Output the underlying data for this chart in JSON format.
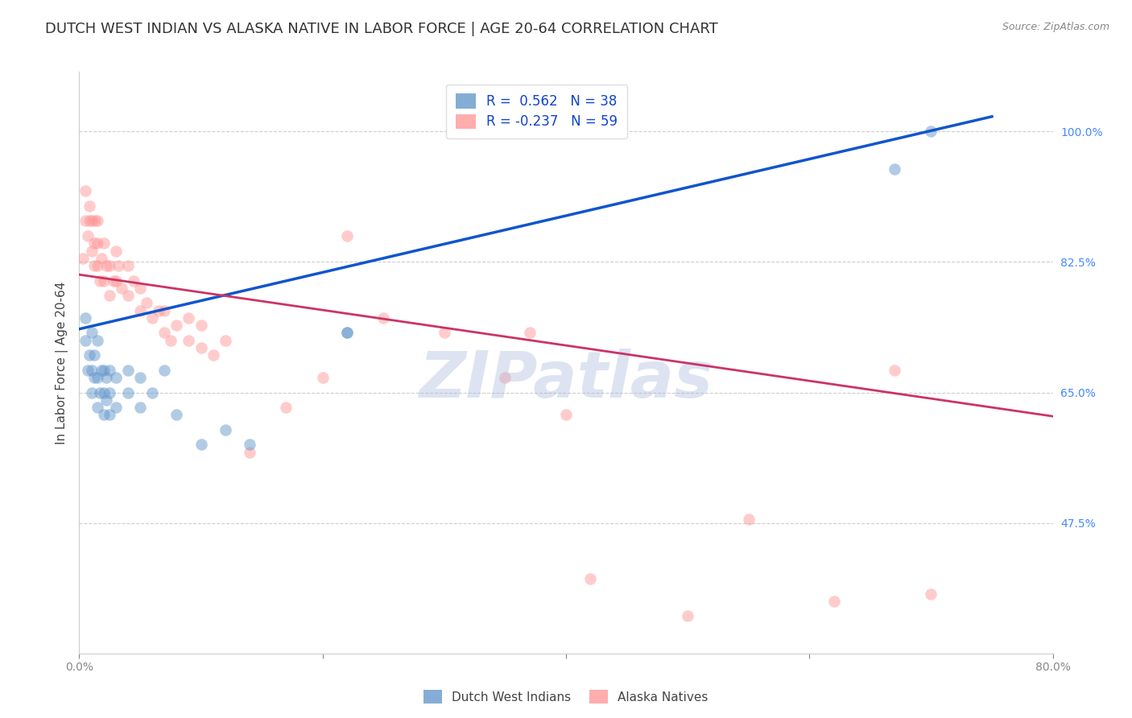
{
  "title": "DUTCH WEST INDIAN VS ALASKA NATIVE IN LABOR FORCE | AGE 20-64 CORRELATION CHART",
  "source": "Source: ZipAtlas.com",
  "ylabel": "In Labor Force | Age 20-64",
  "xlim": [
    0.0,
    0.8
  ],
  "ylim": [
    0.3,
    1.08
  ],
  "yticks": [
    0.475,
    0.65,
    0.825,
    1.0
  ],
  "ytick_labels": [
    "47.5%",
    "65.0%",
    "82.5%",
    "100.0%"
  ],
  "xticks": [
    0.0,
    0.2,
    0.4,
    0.6,
    0.8
  ],
  "xtick_labels": [
    "0.0%",
    "",
    "",
    "",
    "80.0%"
  ],
  "blue_R": 0.562,
  "blue_N": 38,
  "pink_R": -0.237,
  "pink_N": 59,
  "blue_color": "#6699CC",
  "pink_color": "#FF9999",
  "blue_line_color": "#1155CC",
  "pink_line_color": "#CC3366",
  "watermark": "ZIPatlas",
  "watermark_color": "#AABBDD",
  "legend_label_blue": "Dutch West Indians",
  "legend_label_pink": "Alaska Natives",
  "blue_points_x": [
    0.005,
    0.005,
    0.007,
    0.008,
    0.01,
    0.01,
    0.01,
    0.012,
    0.012,
    0.015,
    0.015,
    0.015,
    0.017,
    0.018,
    0.02,
    0.02,
    0.02,
    0.022,
    0.022,
    0.025,
    0.025,
    0.025,
    0.03,
    0.03,
    0.04,
    0.04,
    0.05,
    0.05,
    0.06,
    0.07,
    0.08,
    0.1,
    0.12,
    0.14,
    0.22,
    0.22,
    0.67,
    0.7
  ],
  "blue_points_y": [
    0.72,
    0.75,
    0.68,
    0.7,
    0.65,
    0.68,
    0.73,
    0.67,
    0.7,
    0.63,
    0.67,
    0.72,
    0.65,
    0.68,
    0.62,
    0.65,
    0.68,
    0.64,
    0.67,
    0.62,
    0.65,
    0.68,
    0.63,
    0.67,
    0.65,
    0.68,
    0.63,
    0.67,
    0.65,
    0.68,
    0.62,
    0.58,
    0.6,
    0.58,
    0.73,
    0.73,
    0.95,
    1.0
  ],
  "pink_points_x": [
    0.003,
    0.005,
    0.005,
    0.007,
    0.008,
    0.008,
    0.01,
    0.01,
    0.012,
    0.012,
    0.013,
    0.015,
    0.015,
    0.015,
    0.017,
    0.018,
    0.02,
    0.02,
    0.022,
    0.025,
    0.025,
    0.028,
    0.03,
    0.03,
    0.032,
    0.035,
    0.04,
    0.04,
    0.045,
    0.05,
    0.05,
    0.055,
    0.06,
    0.065,
    0.07,
    0.07,
    0.075,
    0.08,
    0.09,
    0.09,
    0.1,
    0.1,
    0.11,
    0.12,
    0.14,
    0.17,
    0.2,
    0.22,
    0.25,
    0.3,
    0.35,
    0.37,
    0.4,
    0.42,
    0.5,
    0.55,
    0.62,
    0.67,
    0.7
  ],
  "pink_points_y": [
    0.83,
    0.88,
    0.92,
    0.86,
    0.88,
    0.9,
    0.84,
    0.88,
    0.82,
    0.85,
    0.88,
    0.82,
    0.85,
    0.88,
    0.8,
    0.83,
    0.8,
    0.85,
    0.82,
    0.78,
    0.82,
    0.8,
    0.8,
    0.84,
    0.82,
    0.79,
    0.78,
    0.82,
    0.8,
    0.76,
    0.79,
    0.77,
    0.75,
    0.76,
    0.73,
    0.76,
    0.72,
    0.74,
    0.72,
    0.75,
    0.71,
    0.74,
    0.7,
    0.72,
    0.57,
    0.63,
    0.67,
    0.86,
    0.75,
    0.73,
    0.67,
    0.73,
    0.62,
    0.4,
    0.35,
    0.48,
    0.37,
    0.68,
    0.38
  ],
  "blue_trend_x": [
    0.0,
    0.75
  ],
  "blue_trend_y": [
    0.735,
    1.02
  ],
  "pink_trend_x": [
    0.0,
    0.8
  ],
  "pink_trend_y": [
    0.808,
    0.618
  ],
  "title_fontsize": 13,
  "axis_label_fontsize": 11,
  "tick_fontsize": 10,
  "legend_fontsize": 12,
  "dot_size": 110,
  "dot_alpha": 0.5,
  "background_color": "#FFFFFF",
  "grid_color": "#CCCCCC",
  "tick_color_right": "#4488FF"
}
